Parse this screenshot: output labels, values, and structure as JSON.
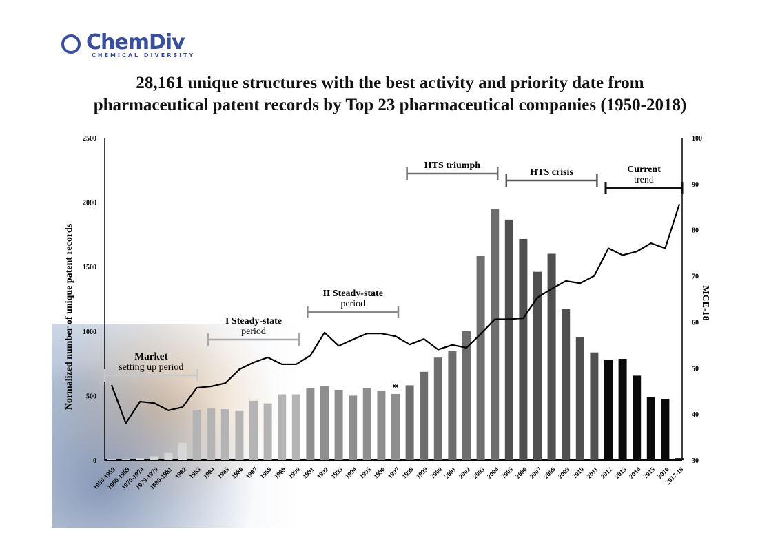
{
  "logo": {
    "name": "ChemDiv",
    "tagline": "CHEMICAL DIVERSITY"
  },
  "title_line1": "28,161 unique structures with the best activity and priority date from",
  "title_line2": "pharmaceutical patent records by Top 23 pharmaceutical companies (1950-2018)",
  "chart_data": {
    "type": "bar+line",
    "ylabel": "Normalized number of unique patent records",
    "y2label": "MCE-18",
    "ylim": [
      0,
      2500
    ],
    "y2lim": [
      30,
      100
    ],
    "yticks": [
      "0",
      "500",
      "1000",
      "1500",
      "2000",
      "2500"
    ],
    "y2ticks": [
      "30",
      "40",
      "50",
      "60",
      "70",
      "80",
      "90",
      "100"
    ],
    "categories": [
      "1950-1959",
      "1960-1969",
      "1970-1974",
      "1975-1979",
      "1980-1981",
      "1982",
      "1983",
      "1984",
      "1985",
      "1986",
      "1987",
      "1988",
      "1989",
      "1990",
      "1991",
      "1992",
      "1993",
      "1994",
      "1995",
      "1996",
      "1997",
      "1998",
      "1999",
      "2000",
      "2001",
      "2002",
      "2003",
      "2004",
      "2005",
      "2006",
      "2007",
      "2008",
      "2009",
      "2010",
      "2011",
      "2012",
      "2013",
      "2014",
      "2015",
      "2016",
      "2017-18"
    ],
    "series": [
      {
        "type": "bar",
        "axis": "left",
        "values": [
          5,
          5,
          15,
          30,
          60,
          135,
          390,
          400,
          395,
          380,
          460,
          440,
          510,
          510,
          560,
          575,
          545,
          500,
          560,
          540,
          513,
          580,
          685,
          795,
          845,
          1000,
          1585,
          1945,
          1865,
          1715,
          1460,
          1600,
          1170,
          955,
          835,
          780,
          785,
          655,
          490,
          475,
          15
        ]
      },
      {
        "type": "line",
        "axis": "right",
        "color": "#000000",
        "values": [
          46.3,
          38,
          42.7,
          42.4,
          40.8,
          41.5,
          45.7,
          46,
          46.7,
          49.7,
          51.2,
          52.3,
          50.8,
          50.8,
          52.7,
          57.7,
          54.8,
          56.2,
          57.5,
          57.5,
          56.9,
          55.1,
          56.3,
          54,
          55,
          54.4,
          57.4,
          60.6,
          60.6,
          60.8,
          65.3,
          67.2,
          68.9,
          68.4,
          70,
          76,
          74.5,
          75.3,
          77.1,
          76,
          85.6
        ]
      }
    ],
    "star_marker": {
      "category": "1997",
      "text": "*"
    },
    "annotations": [
      {
        "line1": "Market",
        "line2": "setting up period",
        "from": "1950-1959",
        "to": "1983",
        "color": "#c8c8c8"
      },
      {
        "line1": "I Steady-state",
        "line2": "period",
        "from": "1984",
        "to": "1990",
        "color": "#a8a8a8"
      },
      {
        "line1": "II Steady-state",
        "line2": "period",
        "from": "1991",
        "to": "1997",
        "color": "#8a8a8a"
      },
      {
        "line1": "HTS triumph",
        "line2": "",
        "from": "1998",
        "to": "2004",
        "color": "#707070"
      },
      {
        "line1": "HTS crisis",
        "line2": "",
        "from": "2005",
        "to": "2011",
        "color": "#555555"
      },
      {
        "line1": "Current",
        "line2": "trend",
        "from": "2012",
        "to": "2017-18",
        "color": "#111111"
      }
    ],
    "period_colors": [
      "#d6d6d6",
      "#b4b4b4",
      "#8e8e8e",
      "#6e6e6e",
      "#505050",
      "#0a0a0a"
    ],
    "grid": false,
    "legend": "none"
  }
}
